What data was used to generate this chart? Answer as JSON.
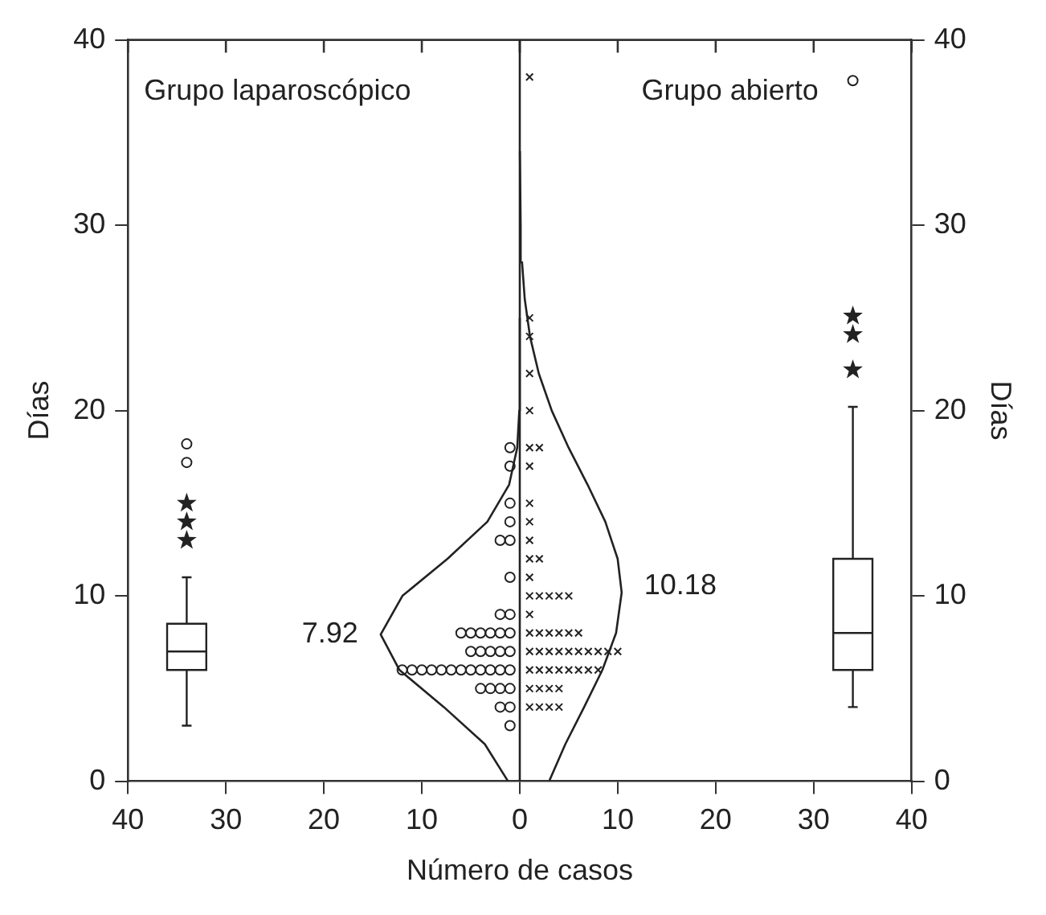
{
  "chart_data": {
    "type": "scatter",
    "xlabel": "Número de casos",
    "ylabel": "Días",
    "y2label": "Días",
    "xlim": [
      -40,
      40
    ],
    "xticks": [
      {
        "value": -40,
        "label": "40"
      },
      {
        "value": -30,
        "label": "30"
      },
      {
        "value": -20,
        "label": "20"
      },
      {
        "value": -10,
        "label": "10"
      },
      0,
      10,
      20,
      30,
      40
    ],
    "ylim": [
      0,
      40
    ],
    "yticks": [
      0,
      10,
      20,
      30,
      40
    ],
    "y2lim": [
      0,
      40
    ],
    "y2ticks": [
      0,
      10,
      20,
      30,
      40
    ],
    "grid": false,
    "legend": false,
    "ref_lines": [
      {
        "axis": "x",
        "value": 0,
        "color": "#222222"
      }
    ],
    "annotations": [
      "Grupo laparoscópico",
      "Grupo abierto",
      {
        "text": "7.92",
        "x": -14.2,
        "y": 7.92
      },
      {
        "text": "10.18",
        "x": 10.4,
        "y": 10.18
      }
    ],
    "series": [
      {
        "type": "scatter",
        "marker": "circle",
        "color": "#222222",
        "x": [
          -1,
          -1,
          -2,
          -1,
          -2,
          -3,
          -4,
          -1,
          -2,
          -3,
          -4,
          -5,
          -6,
          -7,
          -8,
          -9,
          -10,
          -11,
          -12,
          -1,
          -2,
          -3,
          -4,
          -5,
          -1,
          -2,
          -3,
          -4,
          -5,
          -6,
          -1,
          -2,
          -1,
          -1,
          -2,
          -1,
          -1,
          -1,
          -1
        ],
        "values": [
          3,
          4,
          4,
          5,
          5,
          5,
          5,
          6,
          6,
          6,
          6,
          6,
          6,
          6,
          6,
          6,
          6,
          6,
          6,
          7,
          7,
          7,
          7,
          7,
          8,
          8,
          8,
          8,
          8,
          8,
          9,
          9,
          11,
          13,
          13,
          14,
          15,
          17,
          18
        ]
      },
      {
        "type": "scatter",
        "marker": "cross",
        "color": "#222222",
        "x": [
          1,
          2,
          3,
          4,
          1,
          2,
          3,
          4,
          1,
          2,
          3,
          4,
          5,
          6,
          7,
          8,
          1,
          2,
          3,
          4,
          5,
          6,
          7,
          8,
          9,
          10,
          1,
          2,
          3,
          4,
          5,
          6,
          1,
          1,
          2,
          3,
          4,
          5,
          1,
          1,
          2,
          1,
          1,
          1,
          1,
          1,
          2,
          1,
          1,
          1,
          1,
          1
        ],
        "values": [
          4,
          4,
          4,
          4,
          5,
          5,
          5,
          5,
          6,
          6,
          6,
          6,
          6,
          6,
          6,
          6,
          7,
          7,
          7,
          7,
          7,
          7,
          7,
          7,
          7,
          7,
          8,
          8,
          8,
          8,
          8,
          8,
          9,
          10,
          10,
          10,
          10,
          10,
          11,
          12,
          12,
          13,
          14,
          15,
          17,
          18,
          18,
          20,
          22,
          24,
          25,
          38
        ]
      },
      {
        "type": "line",
        "marker": "none",
        "color": "#222222",
        "x": [
          -1.2,
          -3.57,
          -7.75,
          -12.28,
          -14.2,
          -11.98,
          -7.38,
          -3.31,
          -1.09,
          -0.26,
          -0.05,
          0
        ],
        "values": [
          0,
          2,
          4,
          6,
          7.92,
          10,
          12,
          14,
          16,
          18,
          20,
          25
        ]
      },
      {
        "type": "line",
        "marker": "none",
        "color": "#222222",
        "x": [
          3.0,
          4.65,
          6.57,
          8.43,
          9.83,
          10.4,
          9.99,
          8.73,
          6.92,
          4.98,
          3.26,
          1.94,
          1.04,
          0.51,
          0.23,
          0.09,
          0.01
        ],
        "values": [
          0,
          2,
          4,
          6,
          8,
          10.18,
          12,
          14,
          16,
          18,
          20,
          22,
          24,
          26,
          28,
          30,
          34
        ]
      },
      {
        "type": "box",
        "color": "#222222",
        "x": [
          -34
        ],
        "boxes": [
          {
            "low": 3,
            "q1": 6,
            "median": 7,
            "q3": 8.5,
            "high": 11
          }
        ]
      },
      {
        "type": "box",
        "color": "#222222",
        "x": [
          34
        ],
        "boxes": [
          {
            "low": 4,
            "q1": 6,
            "median": 8,
            "q3": 12,
            "high": 20.2
          }
        ]
      },
      {
        "type": "scatter",
        "marker": "star",
        "color": "#222222",
        "x": [
          -34,
          -34,
          -34,
          34,
          34,
          34
        ],
        "values": [
          15,
          14,
          13,
          22.2,
          24.1,
          25.1
        ]
      },
      {
        "type": "scatter",
        "marker": "circle",
        "color": "#222222",
        "x": [
          -34,
          -34,
          34
        ],
        "values": [
          18.2,
          17.2,
          37.8
        ]
      }
    ]
  }
}
